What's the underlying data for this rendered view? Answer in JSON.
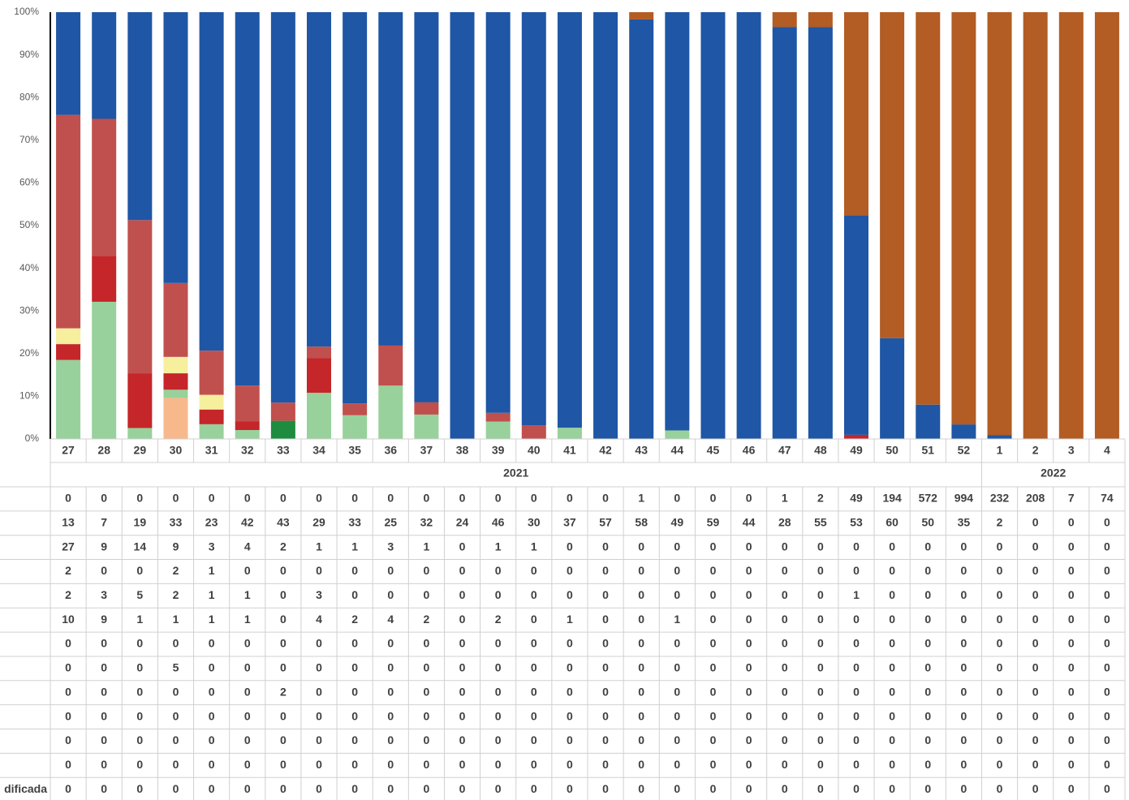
{
  "chart_data": {
    "type": "bar",
    "stacked": "percent",
    "categories": [
      "27",
      "28",
      "29",
      "30",
      "31",
      "32",
      "33",
      "34",
      "35",
      "36",
      "37",
      "38",
      "39",
      "40",
      "41",
      "42",
      "43",
      "44",
      "45",
      "46",
      "47",
      "48",
      "49",
      "50",
      "51",
      "52",
      "1",
      "2",
      "3",
      "4"
    ],
    "x_groups": [
      {
        "label": "2021",
        "start": 0,
        "end": 25
      },
      {
        "label": "2022",
        "start": 26,
        "end": 29
      }
    ],
    "ylim": [
      0,
      100
    ],
    "yticks": [
      {
        "value": 0,
        "label": "0%"
      },
      {
        "value": 10,
        "label": "10%"
      },
      {
        "value": 20,
        "label": "20%"
      },
      {
        "value": 30,
        "label": "30%"
      },
      {
        "value": 40,
        "label": "40%"
      },
      {
        "value": 50,
        "label": "50%"
      },
      {
        "value": 60,
        "label": "60%"
      },
      {
        "value": 70,
        "label": "70%"
      },
      {
        "value": 80,
        "label": "80%"
      },
      {
        "value": 90,
        "label": "90%"
      },
      {
        "value": 100,
        "label": "100%"
      }
    ],
    "grid": false,
    "series": [
      {
        "color": "#b35c23",
        "values": [
          0,
          0,
          0,
          0,
          0,
          0,
          0,
          0,
          0,
          0,
          0,
          0,
          0,
          0,
          0,
          0,
          1,
          0,
          0,
          0,
          1,
          2,
          49,
          194,
          572,
          994,
          232,
          208,
          7,
          74
        ]
      },
      {
        "color": "#1f56a5",
        "values": [
          13,
          7,
          19,
          33,
          23,
          42,
          43,
          29,
          33,
          25,
          32,
          24,
          46,
          30,
          37,
          57,
          58,
          49,
          59,
          44,
          28,
          55,
          53,
          60,
          50,
          35,
          2,
          0,
          0,
          0
        ]
      },
      {
        "color": "#c0504d",
        "values": [
          27,
          9,
          14,
          9,
          3,
          4,
          2,
          1,
          1,
          3,
          1,
          0,
          1,
          1,
          0,
          0,
          0,
          0,
          0,
          0,
          0,
          0,
          0,
          0,
          0,
          0,
          0,
          0,
          0,
          0
        ]
      },
      {
        "color": "#f6ef9e",
        "values": [
          2,
          0,
          0,
          2,
          1,
          0,
          0,
          0,
          0,
          0,
          0,
          0,
          0,
          0,
          0,
          0,
          0,
          0,
          0,
          0,
          0,
          0,
          0,
          0,
          0,
          0,
          0,
          0,
          0,
          0
        ]
      },
      {
        "color": "#c4262a",
        "values": [
          2,
          3,
          5,
          2,
          1,
          1,
          0,
          3,
          0,
          0,
          0,
          0,
          0,
          0,
          0,
          0,
          0,
          0,
          0,
          0,
          0,
          0,
          1,
          0,
          0,
          0,
          0,
          0,
          0,
          0
        ]
      },
      {
        "color": "#98d19b",
        "values": [
          10,
          9,
          1,
          1,
          1,
          1,
          0,
          4,
          2,
          4,
          2,
          0,
          2,
          0,
          1,
          0,
          0,
          1,
          0,
          0,
          0,
          0,
          0,
          0,
          0,
          0,
          0,
          0,
          0,
          0
        ]
      },
      {
        "color": "#7f7f7f",
        "values": [
          0,
          0,
          0,
          0,
          0,
          0,
          0,
          0,
          0,
          0,
          0,
          0,
          0,
          0,
          0,
          0,
          0,
          0,
          0,
          0,
          0,
          0,
          0,
          0,
          0,
          0,
          0,
          0,
          0,
          0
        ]
      },
      {
        "color": "#f7b98c",
        "values": [
          0,
          0,
          0,
          5,
          0,
          0,
          0,
          0,
          0,
          0,
          0,
          0,
          0,
          0,
          0,
          0,
          0,
          0,
          0,
          0,
          0,
          0,
          0,
          0,
          0,
          0,
          0,
          0,
          0,
          0
        ]
      },
      {
        "color": "#1e8c3e",
        "values": [
          0,
          0,
          0,
          0,
          0,
          0,
          2,
          0,
          0,
          0,
          0,
          0,
          0,
          0,
          0,
          0,
          0,
          0,
          0,
          0,
          0,
          0,
          0,
          0,
          0,
          0,
          0,
          0,
          0,
          0
        ]
      },
      {
        "color": "#8064a2",
        "values": [
          0,
          0,
          0,
          0,
          0,
          0,
          0,
          0,
          0,
          0,
          0,
          0,
          0,
          0,
          0,
          0,
          0,
          0,
          0,
          0,
          0,
          0,
          0,
          0,
          0,
          0,
          0,
          0,
          0,
          0
        ]
      },
      {
        "color": "#4bacc6",
        "values": [
          0,
          0,
          0,
          0,
          0,
          0,
          0,
          0,
          0,
          0,
          0,
          0,
          0,
          0,
          0,
          0,
          0,
          0,
          0,
          0,
          0,
          0,
          0,
          0,
          0,
          0,
          0,
          0,
          0,
          0
        ]
      },
      {
        "color": "#9bbb59",
        "values": [
          0,
          0,
          0,
          0,
          0,
          0,
          0,
          0,
          0,
          0,
          0,
          0,
          0,
          0,
          0,
          0,
          0,
          0,
          0,
          0,
          0,
          0,
          0,
          0,
          0,
          0,
          0,
          0,
          0,
          0
        ]
      },
      {
        "name": "dificada",
        "color": "#a5a5a5",
        "values": [
          0,
          0,
          0,
          0,
          0,
          0,
          0,
          0,
          0,
          0,
          0,
          0,
          0,
          0,
          0,
          0,
          0,
          0,
          0,
          0,
          0,
          0,
          0,
          0,
          0,
          0,
          0,
          0,
          0,
          0
        ]
      }
    ]
  }
}
